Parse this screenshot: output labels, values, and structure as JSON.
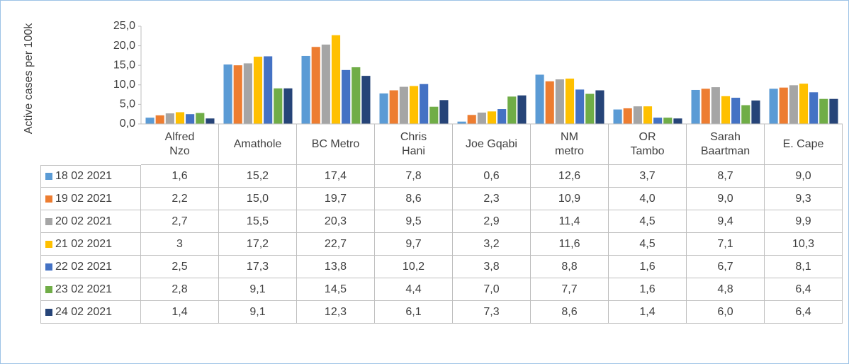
{
  "chart_data": {
    "type": "bar",
    "ylabel": "Active cases per 100k",
    "categories": [
      "Alfred\nNzo",
      "Amathole",
      "BC Metro",
      "Chris\nHani",
      "Joe Gqabi",
      "NM\nmetro",
      "OR\nTambo",
      "Sarah\nBaartman",
      "E. Cape"
    ],
    "ylim": [
      0,
      25
    ],
    "yticks": [
      {
        "value": 0,
        "label": "0,0"
      },
      {
        "value": 5,
        "label": "5,0"
      },
      {
        "value": 10,
        "label": "10,0"
      },
      {
        "value": 15,
        "label": "15,0"
      },
      {
        "value": 20,
        "label": "20,0"
      },
      {
        "value": 25,
        "label": "25,0"
      }
    ],
    "grid": false,
    "series": [
      {
        "name": "18 02 2021",
        "color": "#5b9bd5",
        "values": [
          1.6,
          15.2,
          17.4,
          7.8,
          0.6,
          12.6,
          3.7,
          8.7,
          9.0
        ],
        "value_labels": [
          "1,6",
          "15,2",
          "17,4",
          "7,8",
          "0,6",
          "12,6",
          "3,7",
          "8,7",
          "9,0"
        ]
      },
      {
        "name": "19 02 2021",
        "color": "#ed7d31",
        "values": [
          2.2,
          15.0,
          19.7,
          8.6,
          2.3,
          10.9,
          4.0,
          9.0,
          9.3
        ],
        "value_labels": [
          "2,2",
          "15,0",
          "19,7",
          "8,6",
          "2,3",
          "10,9",
          "4,0",
          "9,0",
          "9,3"
        ]
      },
      {
        "name": "20 02 2021",
        "color": "#a5a5a5",
        "values": [
          2.7,
          15.5,
          20.3,
          9.5,
          2.9,
          11.4,
          4.5,
          9.4,
          9.9
        ],
        "value_labels": [
          "2,7",
          "15,5",
          "20,3",
          "9,5",
          "2,9",
          "11,4",
          "4,5",
          "9,4",
          "9,9"
        ]
      },
      {
        "name": "21 02 2021",
        "color": "#ffc000",
        "values": [
          3,
          17.2,
          22.7,
          9.7,
          3.2,
          11.6,
          4.5,
          7.1,
          10.3
        ],
        "value_labels": [
          "3",
          "17,2",
          "22,7",
          "9,7",
          "3,2",
          "11,6",
          "4,5",
          "7,1",
          "10,3"
        ]
      },
      {
        "name": "22 02 2021",
        "color": "#4472c4",
        "values": [
          2.5,
          17.3,
          13.8,
          10.2,
          3.8,
          8.8,
          1.6,
          6.7,
          8.1
        ],
        "value_labels": [
          "2,5",
          "17,3",
          "13,8",
          "10,2",
          "3,8",
          "8,8",
          "1,6",
          "6,7",
          "8,1"
        ]
      },
      {
        "name": "23 02 2021",
        "color": "#70ad47",
        "values": [
          2.8,
          9.1,
          14.5,
          4.4,
          7.0,
          7.7,
          1.6,
          4.8,
          6.4
        ],
        "value_labels": [
          "2,8",
          "9,1",
          "14,5",
          "4,4",
          "7,0",
          "7,7",
          "1,6",
          "4,8",
          "6,4"
        ]
      },
      {
        "name": "24 02 2021",
        "color": "#264478",
        "values": [
          1.4,
          9.1,
          12.3,
          6.1,
          7.3,
          8.6,
          1.4,
          6.0,
          6.4
        ],
        "value_labels": [
          "1,4",
          "9,1",
          "12,3",
          "6,1",
          "7,3",
          "8,6",
          "1,4",
          "6,0",
          "6,4"
        ]
      }
    ]
  }
}
